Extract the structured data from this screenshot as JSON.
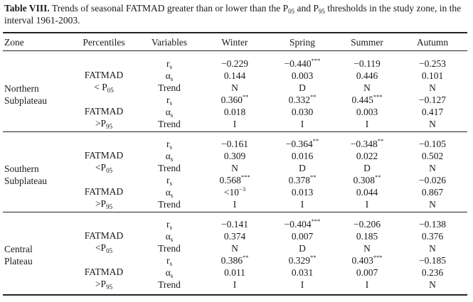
{
  "caption": {
    "label": "Table VIII.",
    "text_pre": " Trends of seasonal FATMAD greater than or lower than the P",
    "sub1": "05",
    "text_mid": " and P",
    "sub2": "95",
    "text_post": " thresholds in the study zone, in the interval 1961-2003."
  },
  "headers": {
    "zone": "Zone",
    "percentiles": "Percentiles",
    "variables": "Variables",
    "winter": "Winter",
    "spring": "Spring",
    "summer": "Summer",
    "autumn": "Autumn"
  },
  "groups": [
    {
      "zone_line1": "Northern",
      "zone_line2": "Subplateau",
      "blocks": [
        {
          "pct_line1": "FATMAD",
          "pct_line2_prefix": "< P",
          "pct_line2_sub": "05",
          "rows": [
            {
              "var": "r",
              "var_sub": "s",
              "w": "−0.229",
              "w_sig": "",
              "sp": "−0.440",
              "sp_sig": "***",
              "su": "−0.119",
              "su_sig": "",
              "au": "−0.253",
              "au_sig": ""
            },
            {
              "var": "α",
              "var_sub": "s",
              "w": "0.144",
              "w_sig": "",
              "sp": "0.003",
              "sp_sig": "",
              "su": "0.446",
              "su_sig": "",
              "au": "0.101",
              "au_sig": ""
            },
            {
              "var": "Trend",
              "var_sub": "",
              "w": "N",
              "w_sig": "",
              "sp": "D",
              "sp_sig": "",
              "su": "N",
              "su_sig": "",
              "au": "N",
              "au_sig": ""
            }
          ]
        },
        {
          "pct_line1": "FATMAD",
          "pct_line2_prefix": ">P",
          "pct_line2_sub": "95",
          "rows": [
            {
              "var": "r",
              "var_sub": "s",
              "w": "0.360",
              "w_sig": "**",
              "sp": "0.332",
              "sp_sig": "**",
              "su": "0.445",
              "su_sig": "***",
              "au": "−0.127",
              "au_sig": ""
            },
            {
              "var": "α",
              "var_sub": "s",
              "w": "0.018",
              "w_sig": "",
              "sp": "0.030",
              "sp_sig": "",
              "su": "0.003",
              "su_sig": "",
              "au": "0.417",
              "au_sig": ""
            },
            {
              "var": "Trend",
              "var_sub": "",
              "w": "I",
              "w_sig": "",
              "sp": "I",
              "sp_sig": "",
              "su": "I",
              "su_sig": "",
              "au": "N",
              "au_sig": ""
            }
          ]
        }
      ]
    },
    {
      "zone_line1": "Southern",
      "zone_line2": "Subplateau",
      "blocks": [
        {
          "pct_line1": "FATMAD",
          "pct_line2_prefix": "<P",
          "pct_line2_sub": "05",
          "rows": [
            {
              "var": "r",
              "var_sub": "s",
              "w": "−0.161",
              "w_sig": "",
              "sp": "−0.364",
              "sp_sig": "**",
              "su": "−0.348",
              "su_sig": "**",
              "au": "−0.105",
              "au_sig": ""
            },
            {
              "var": "α",
              "var_sub": "s",
              "w": "0.309",
              "w_sig": "",
              "sp": "0.016",
              "sp_sig": "",
              "su": "0.022",
              "su_sig": "",
              "au": "0.502",
              "au_sig": ""
            },
            {
              "var": "Trend",
              "var_sub": "",
              "w": "N",
              "w_sig": "",
              "sp": "D",
              "sp_sig": "",
              "su": "D",
              "su_sig": "",
              "au": "N",
              "au_sig": ""
            }
          ]
        },
        {
          "pct_line1": "FATMAD",
          "pct_line2_prefix": ">P",
          "pct_line2_sub": "95",
          "rows": [
            {
              "var": "r",
              "var_sub": "s",
              "w": "0.568",
              "w_sig": "***",
              "sp": "0.378",
              "sp_sig": "**",
              "su": "0.308",
              "su_sig": "**",
              "au": "−0.026",
              "au_sig": ""
            },
            {
              "var": "α",
              "var_sub": "s",
              "w": "<10",
              "w_sig": "−3",
              "sp": "0.013",
              "sp_sig": "",
              "su": "0.044",
              "su_sig": "",
              "au": "0.867",
              "au_sig": ""
            },
            {
              "var": "Trend",
              "var_sub": "",
              "w": "I",
              "w_sig": "",
              "sp": "I",
              "sp_sig": "",
              "su": "I",
              "su_sig": "",
              "au": "N",
              "au_sig": ""
            }
          ]
        }
      ]
    },
    {
      "zone_line1": "Central",
      "zone_line2": "Plateau",
      "blocks": [
        {
          "pct_line1": "FATMAD",
          "pct_line2_prefix": "<P",
          "pct_line2_sub": "05",
          "rows": [
            {
              "var": "r",
              "var_sub": "s",
              "w": "−0.141",
              "w_sig": "",
              "sp": "−0.404",
              "sp_sig": "***",
              "su": "−0.206",
              "su_sig": "",
              "au": "−0.138",
              "au_sig": ""
            },
            {
              "var": "α",
              "var_sub": "s",
              "w": "0.374",
              "w_sig": "",
              "sp": "0.007",
              "sp_sig": "",
              "su": "0.185",
              "su_sig": "",
              "au": "0.376",
              "au_sig": ""
            },
            {
              "var": "Trend",
              "var_sub": "",
              "w": "N",
              "w_sig": "",
              "sp": "D",
              "sp_sig": "",
              "su": "N",
              "su_sig": "",
              "au": "N",
              "au_sig": ""
            }
          ]
        },
        {
          "pct_line1": "FATMAD",
          "pct_line2_prefix": ">P",
          "pct_line2_sub": "95",
          "rows": [
            {
              "var": "r",
              "var_sub": "s",
              "w": "0.386",
              "w_sig": "**",
              "sp": "0.329",
              "sp_sig": "**",
              "su": "0.403",
              "su_sig": "***",
              "au": "−0.185",
              "au_sig": ""
            },
            {
              "var": "α",
              "var_sub": "s",
              "w": "0.011",
              "w_sig": "",
              "sp": "0.031",
              "sp_sig": "",
              "su": "0.007",
              "su_sig": "",
              "au": "0.236",
              "au_sig": ""
            },
            {
              "var": "Trend",
              "var_sub": "",
              "w": "I",
              "w_sig": "",
              "sp": "I",
              "sp_sig": "",
              "su": "I",
              "su_sig": "",
              "au": "N",
              "au_sig": ""
            }
          ]
        }
      ]
    }
  ]
}
